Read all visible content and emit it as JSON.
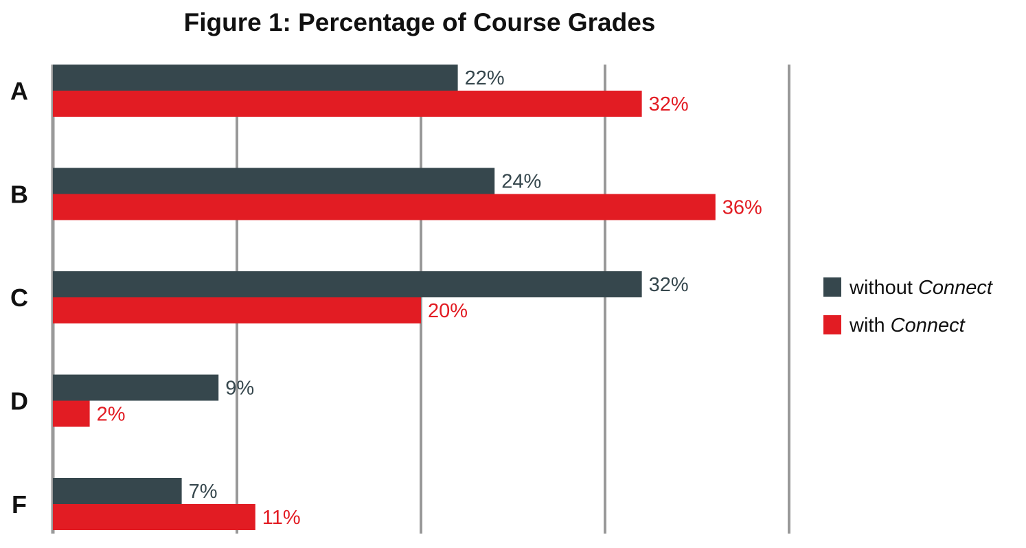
{
  "chart_data": {
    "type": "bar",
    "orientation": "horizontal",
    "title": "Figure 1: Percentage of Course Grades",
    "xlabel": "",
    "ylabel": "",
    "categories": [
      "A",
      "B",
      "C",
      "D",
      "F"
    ],
    "series": [
      {
        "name": "without Connect",
        "name_plain": "without ",
        "name_italic": "Connect",
        "color": "#36474d",
        "values": [
          22,
          24,
          32,
          9,
          7
        ],
        "labels": [
          "22%",
          "24%",
          "32%",
          "9%",
          "7%"
        ]
      },
      {
        "name": "with Connect",
        "name_plain": "with ",
        "name_italic": "Connect",
        "color": "#e21c23",
        "values": [
          32,
          36,
          20,
          2,
          11
        ],
        "labels": [
          "32%",
          "36%",
          "20%",
          "2%",
          "11%"
        ]
      }
    ],
    "xlim": [
      0,
      40
    ],
    "grid": true,
    "gridline_color": "#999999",
    "legend_position": "right"
  }
}
